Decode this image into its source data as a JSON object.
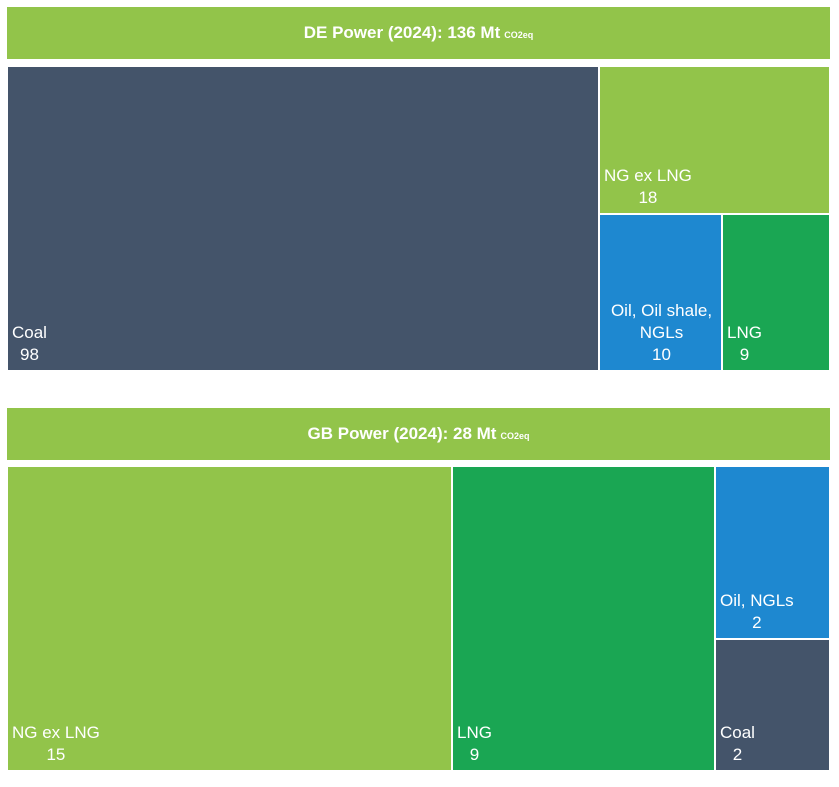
{
  "chart_data": [
    {
      "type": "treemap",
      "title_main": "DE Power (2024): 136 Mt",
      "title_unit": "CO2eq",
      "header_color": "#92c44a",
      "tiles": [
        {
          "name": "Coal",
          "value": 98,
          "display": "98",
          "color": "#44546a"
        },
        {
          "name": "NG ex LNG",
          "value": 18,
          "display": "18",
          "color": "#92c44a"
        },
        {
          "name": "Oil, Oil shale, NGLs",
          "value": 10,
          "display": "10",
          "color": "#1e88d0"
        },
        {
          "name": "LNG",
          "value": 9,
          "display": "9",
          "color": "#1aa653"
        }
      ]
    },
    {
      "type": "treemap",
      "title_main": "GB Power (2024): 28 Mt",
      "title_unit": "CO2eq",
      "header_color": "#92c44a",
      "tiles": [
        {
          "name": "NG ex LNG",
          "value": 15,
          "display": "15",
          "color": "#92c44a"
        },
        {
          "name": "LNG",
          "value": 9,
          "display": "9",
          "color": "#1aa653"
        },
        {
          "name": "Oil, NGLs",
          "value": 2,
          "display": "2",
          "color": "#1e88d0"
        },
        {
          "name": "Coal",
          "value": 2,
          "display": "2",
          "color": "#44546a"
        }
      ]
    }
  ]
}
